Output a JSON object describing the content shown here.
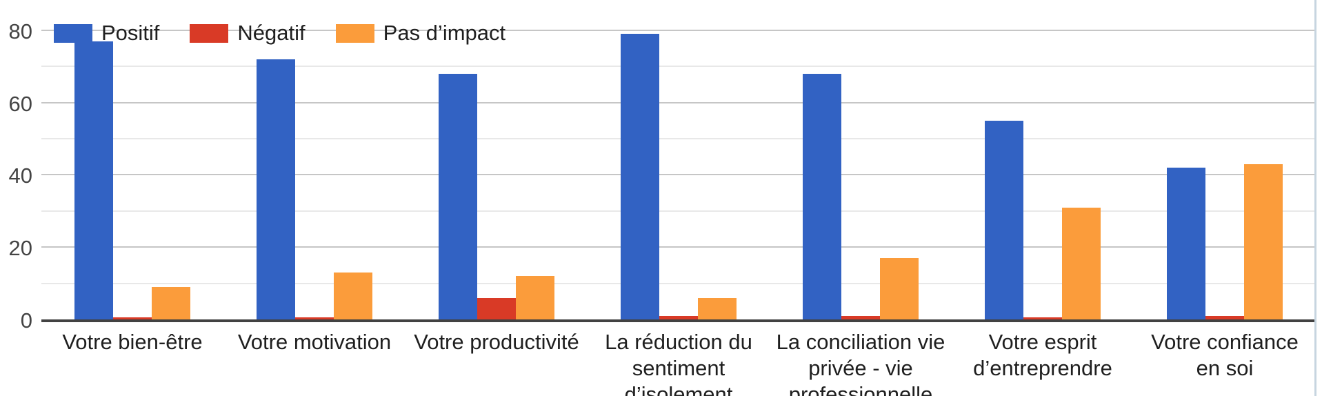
{
  "chart_data": {
    "type": "bar",
    "title": "",
    "xlabel": "",
    "ylabel": "",
    "categories": [
      "Votre bien-être",
      "Votre motivation",
      "Votre productivité",
      "La réduction du sentiment d’isolement",
      "La conciliation vie privée - vie professionnelle",
      "Votre esprit d’entreprendre",
      "Votre confiance en soi"
    ],
    "category_label_lines": [
      [
        "Votre bien-être"
      ],
      [
        "Votre motivation"
      ],
      [
        "Votre productivité"
      ],
      [
        "La réduction du",
        "sentiment",
        "d’isolement"
      ],
      [
        "La conciliation vie",
        "privée - vie",
        "professionnelle"
      ],
      [
        "Votre esprit",
        "d’entreprendre"
      ],
      [
        "Votre confiance",
        "en soi"
      ]
    ],
    "series": [
      {
        "name": "Positif",
        "color": "#3262C3",
        "values": [
          77,
          72,
          68,
          79,
          68,
          55,
          42
        ]
      },
      {
        "name": "Négatif",
        "color": "#D93A26",
        "values": [
          0.5,
          0.5,
          6,
          1,
          1,
          0.5,
          1
        ]
      },
      {
        "name": "Pas d’impact",
        "color": "#FB9C3B",
        "values": [
          9,
          13,
          12,
          6,
          17,
          31,
          43
        ]
      }
    ],
    "ylim": [
      0,
      80
    ],
    "yticks": [
      0,
      20,
      40,
      60,
      80
    ],
    "minor_gridlines": [
      10,
      30,
      50,
      70
    ],
    "grid": true,
    "legend_position": "top-left"
  },
  "colors": {
    "background": "#ffffff",
    "axis_line": "#424242",
    "major_gridline": "#c6c6c6",
    "minor_gridline": "#e8e8e8",
    "tick_label": "#444444",
    "category_label": "#1f1f1f",
    "legend_label": "#1f1f1f",
    "page_edge_line": "#c7d5e0"
  }
}
